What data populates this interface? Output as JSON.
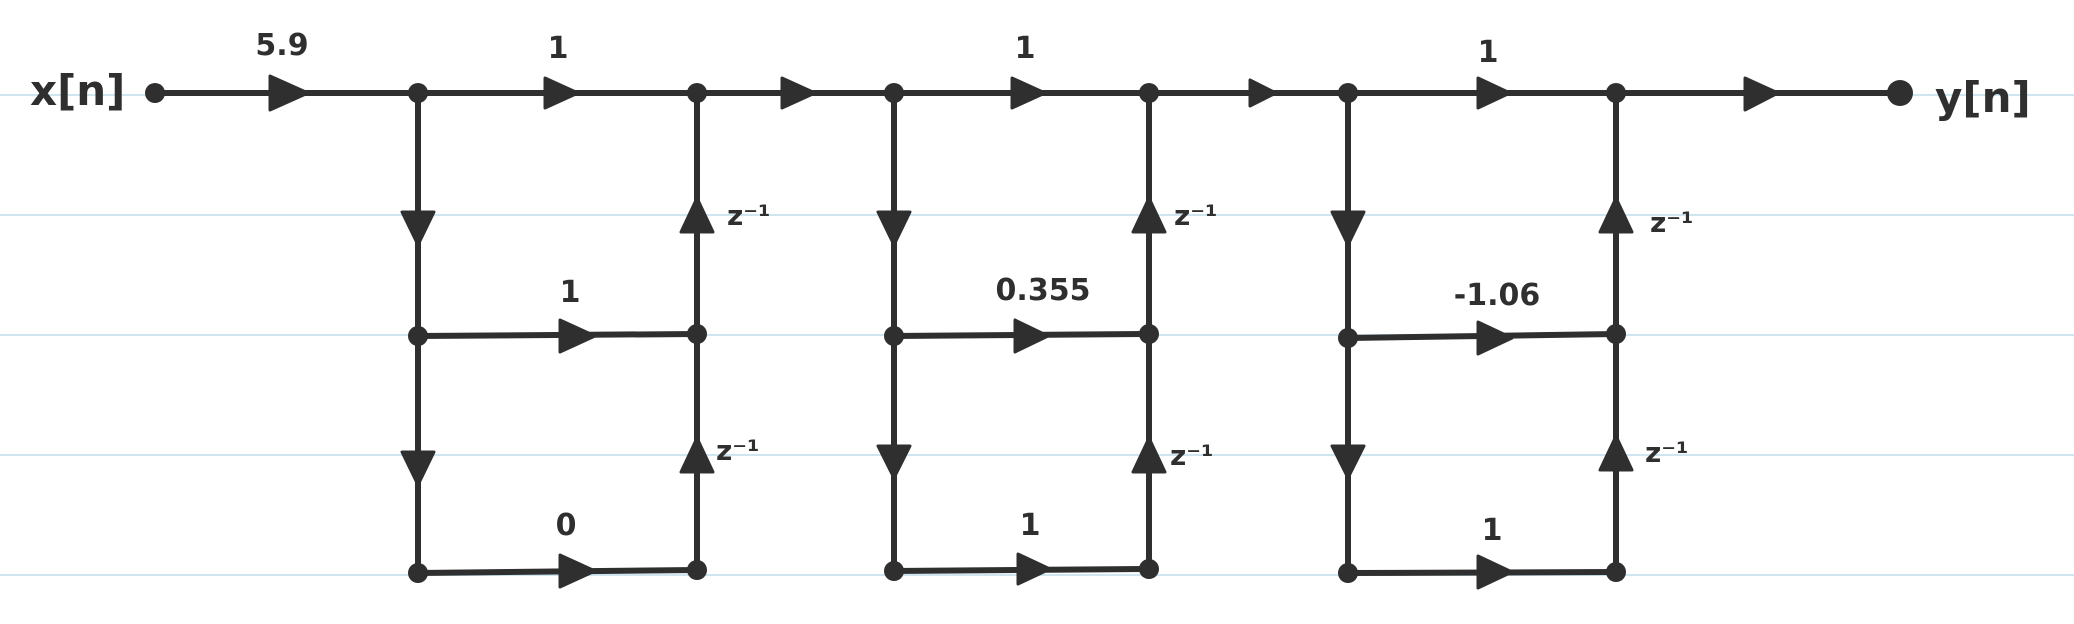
{
  "signals": {
    "input": "x[n]",
    "output": "y[n]"
  },
  "input_gain": "5.9",
  "delay_label": "z⁻¹",
  "sections": [
    {
      "feedforward_gain": "1",
      "first_order_gain": "1",
      "second_order_gain": "0"
    },
    {
      "feedforward_gain": "1",
      "first_order_gain": "0.355",
      "second_order_gain": "1"
    },
    {
      "feedforward_gain": "1",
      "first_order_gain": "-1.06",
      "second_order_gain": "1"
    }
  ]
}
